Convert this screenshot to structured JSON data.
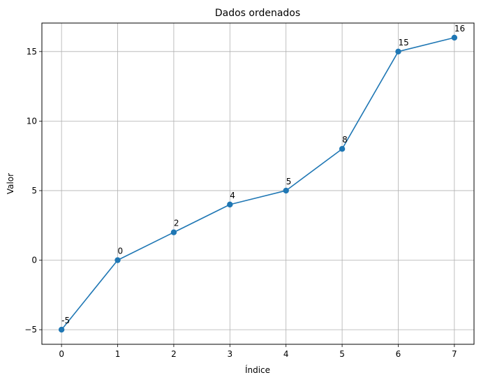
{
  "chart_data": {
    "type": "line",
    "title": "Dados ordenados",
    "xlabel": "Índice",
    "ylabel": "Valor",
    "x": [
      0,
      1,
      2,
      3,
      4,
      5,
      6,
      7
    ],
    "series": [
      {
        "values": [
          -5,
          0,
          2,
          4,
          5,
          8,
          15,
          16
        ]
      }
    ],
    "data_labels": [
      "-5",
      "0",
      "2",
      "4",
      "5",
      "8",
      "15",
      "16"
    ],
    "xticks": [
      0,
      1,
      2,
      3,
      4,
      5,
      6,
      7
    ],
    "xtick_labels": [
      "0",
      "1",
      "2",
      "3",
      "4",
      "5",
      "6",
      "7"
    ],
    "yticks": [
      -5,
      0,
      5,
      10,
      15
    ],
    "ytick_labels": [
      "−5",
      "0",
      "5",
      "10",
      "15"
    ],
    "xlim": [
      -0.35,
      7.35
    ],
    "ylim": [
      -6.05,
      17.05
    ],
    "grid": true,
    "colors": {
      "line": "#1f77b4",
      "grid": "#b0b0b0",
      "axes": "#000000"
    }
  }
}
